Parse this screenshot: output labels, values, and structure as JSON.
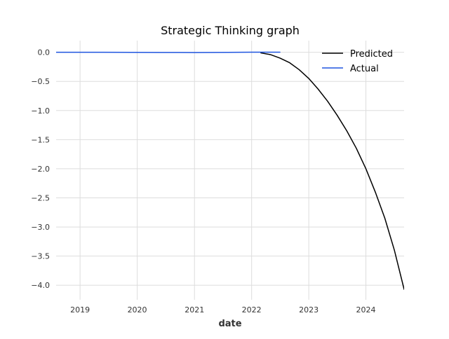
{
  "chart_data": {
    "type": "line",
    "title": "Strategic Thinking graph",
    "xlabel": "date",
    "ylabel": "",
    "x_axis": {
      "type": "date",
      "range": [
        "2018-08-01",
        "2024-09-01"
      ],
      "ticks": [
        {
          "value": "2019-01-01",
          "label": "2019"
        },
        {
          "value": "2020-01-01",
          "label": "2020"
        },
        {
          "value": "2021-01-01",
          "label": "2021"
        },
        {
          "value": "2022-01-01",
          "label": "2022"
        },
        {
          "value": "2023-01-01",
          "label": "2023"
        },
        {
          "value": "2024-01-01",
          "label": "2024"
        }
      ]
    },
    "y_axis": {
      "range": [
        -4.25,
        0.2
      ],
      "ticks": [
        {
          "value": 0.0,
          "label": "0.0"
        },
        {
          "value": -0.5,
          "label": "−0.5"
        },
        {
          "value": -1.0,
          "label": "−1.0"
        },
        {
          "value": -1.5,
          "label": "−1.5"
        },
        {
          "value": -2.0,
          "label": "−2.0"
        },
        {
          "value": -2.5,
          "label": "−2.5"
        },
        {
          "value": -3.0,
          "label": "−3.0"
        },
        {
          "value": -3.5,
          "label": "−3.5"
        },
        {
          "value": -4.0,
          "label": "−4.0"
        }
      ]
    },
    "grid": true,
    "legend": "top-right",
    "series": [
      {
        "name": "Predicted",
        "color": "#000000",
        "points": [
          {
            "x": "2022-03-01",
            "y": -0.01
          },
          {
            "x": "2022-05-01",
            "y": -0.04
          },
          {
            "x": "2022-07-01",
            "y": -0.1
          },
          {
            "x": "2022-09-01",
            "y": -0.18
          },
          {
            "x": "2022-11-01",
            "y": -0.3
          },
          {
            "x": "2023-01-01",
            "y": -0.45
          },
          {
            "x": "2023-03-01",
            "y": -0.63
          },
          {
            "x": "2023-05-01",
            "y": -0.84
          },
          {
            "x": "2023-07-01",
            "y": -1.08
          },
          {
            "x": "2023-09-01",
            "y": -1.35
          },
          {
            "x": "2023-11-01",
            "y": -1.65
          },
          {
            "x": "2024-01-01",
            "y": -2.0
          },
          {
            "x": "2024-03-01",
            "y": -2.4
          },
          {
            "x": "2024-05-01",
            "y": -2.85
          },
          {
            "x": "2024-07-01",
            "y": -3.4
          },
          {
            "x": "2024-09-01",
            "y": -4.07
          }
        ]
      },
      {
        "name": "Actual",
        "color": "#1f55e0",
        "points": [
          {
            "x": "2018-08-01",
            "y": 0.0
          },
          {
            "x": "2019-06-01",
            "y": 0.0
          },
          {
            "x": "2020-06-01",
            "y": -0.003
          },
          {
            "x": "2021-01-01",
            "y": -0.004
          },
          {
            "x": "2021-08-01",
            "y": -0.002
          },
          {
            "x": "2022-01-01",
            "y": 0.002
          },
          {
            "x": "2022-07-01",
            "y": 0.001
          }
        ]
      }
    ]
  }
}
